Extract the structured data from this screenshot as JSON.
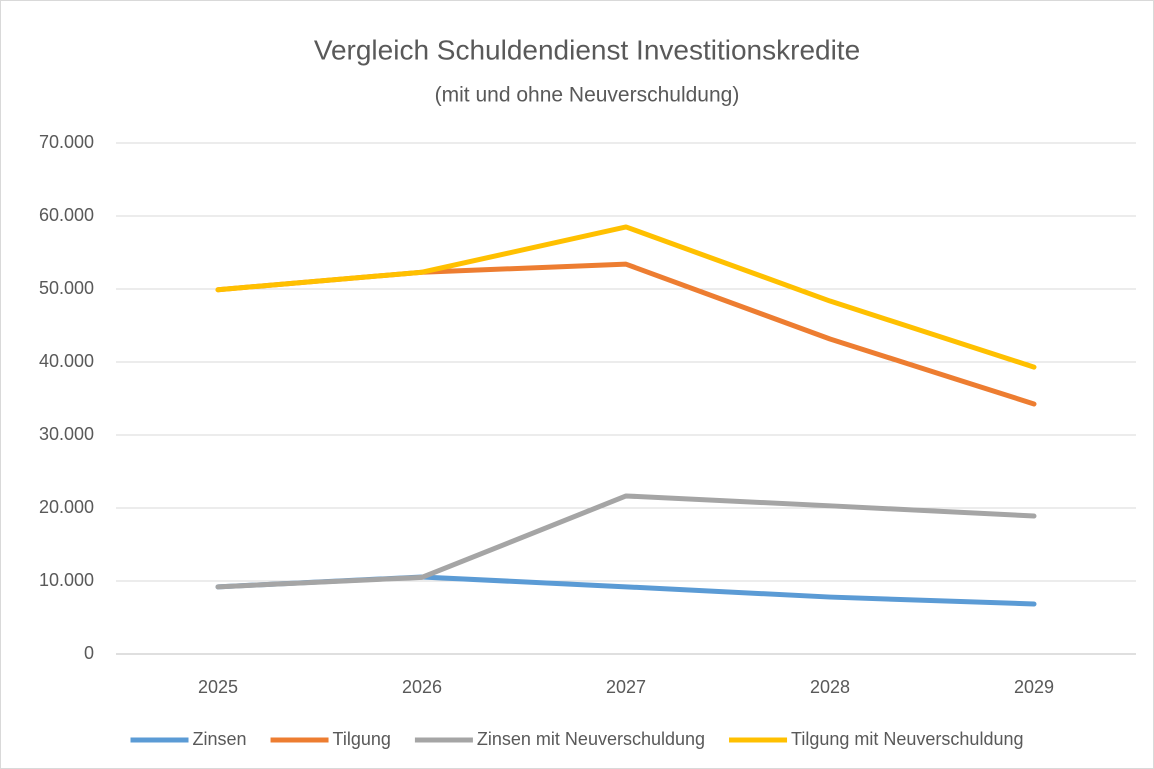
{
  "chart_data": {
    "type": "line",
    "title": "Vergleich Schuldendienst Investitionskredite",
    "subtitle": "(mit und ohne Neuverschuldung)",
    "categories": [
      "2025",
      "2026",
      "2027",
      "2028",
      "2029"
    ],
    "series": [
      {
        "name": "Zinsen",
        "color": "#5b9bd5",
        "values": [
          9200,
          10550,
          9200,
          7800,
          6850
        ]
      },
      {
        "name": "Tilgung",
        "color": "#ed7d31",
        "values": [
          49900,
          52300,
          53400,
          43150,
          34250
        ]
      },
      {
        "name": "Zinsen mit Neuverschuldung",
        "color": "#a5a5a5",
        "values": [
          9200,
          10500,
          21650,
          20300,
          18900
        ]
      },
      {
        "name": "Tilgung mit Neuverschuldung",
        "color": "#ffc000",
        "values": [
          49900,
          52300,
          58500,
          48350,
          39300
        ]
      }
    ],
    "ylim": [
      0,
      70000
    ],
    "yticks": [
      0,
      {
        "value": 10000,
        "label": "10.000"
      },
      {
        "value": 20000,
        "label": "20.000"
      },
      {
        "value": 30000,
        "label": "30.000"
      },
      {
        "value": 40000,
        "label": "40.000"
      },
      {
        "value": 50000,
        "label": "50.000"
      },
      {
        "value": 60000,
        "label": "60.000"
      },
      {
        "value": 70000,
        "label": "70.000"
      }
    ],
    "grid": true,
    "legend": "bottom"
  }
}
